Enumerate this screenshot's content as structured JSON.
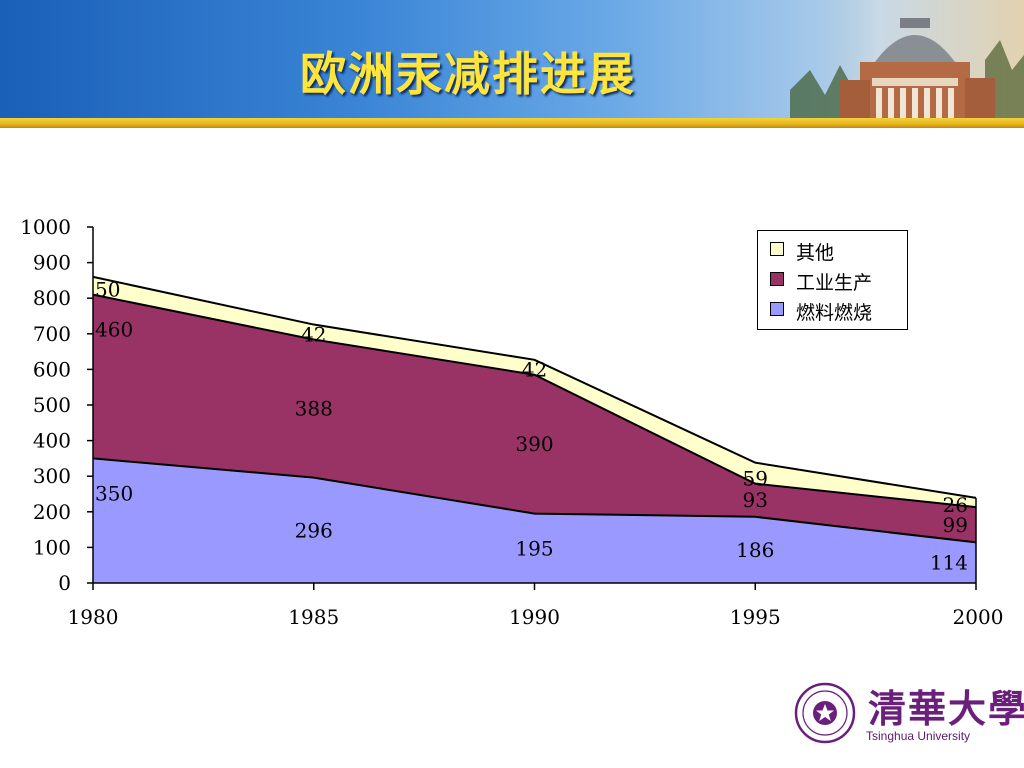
{
  "slide": {
    "title": "欧洲汞减排进展",
    "logo_cn": "清華大學",
    "logo_en": "Tsinghua University"
  },
  "colors": {
    "fuel": "#9999ff",
    "industry": "#993366",
    "other": "#ffffcc",
    "title": "#ffe43a"
  },
  "chart_data": {
    "type": "area",
    "stacked": true,
    "x": [
      "1980",
      "1985",
      "1990",
      "1995",
      "2000"
    ],
    "ylim": [
      0,
      1000
    ],
    "yticks": [
      "0",
      "100",
      "200",
      "300",
      "400",
      "500",
      "600",
      "700",
      "800",
      "900",
      "1000"
    ],
    "series": [
      {
        "name": "燃料燃烧",
        "values": [
          350,
          296,
          195,
          186,
          114
        ]
      },
      {
        "name": "工业生产",
        "values": [
          460,
          388,
          390,
          93,
          99
        ]
      },
      {
        "name": "其他",
        "values": [
          50,
          42,
          42,
          59,
          26
        ]
      }
    ],
    "legend": [
      "其他",
      "工业生产",
      "燃料燃烧"
    ],
    "legend_position": "top-right",
    "grid": false
  }
}
